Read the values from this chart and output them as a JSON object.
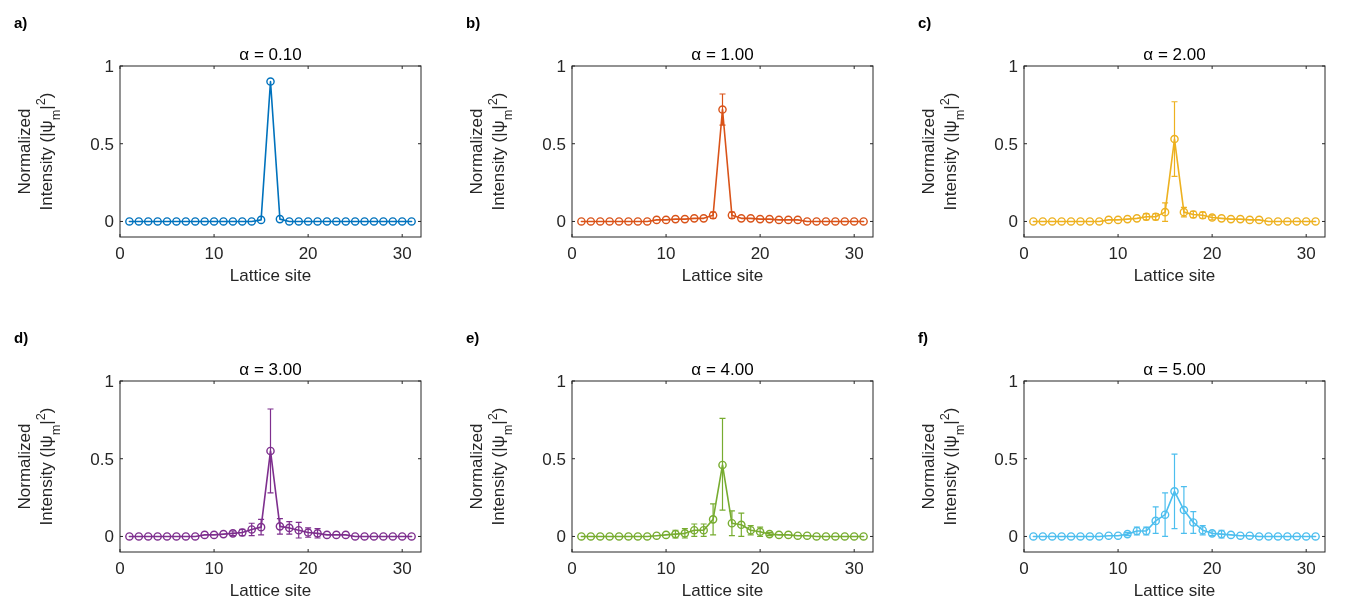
{
  "chart_data": [
    {
      "type": "line",
      "title": "α = 0.10",
      "xlabel": "Lattice site",
      "ylabel": "Normalized\nIntensity (|ψ$_{m}$|$^{2}$)",
      "annotations": [
        "a)"
      ],
      "xlim": [
        0,
        32
      ],
      "xticks": [
        0,
        10,
        20,
        30
      ],
      "ylim": [
        -0.1,
        1
      ],
      "yticks": [
        0,
        0.5,
        1
      ],
      "marker": "circle",
      "x": [
        1,
        2,
        3,
        4,
        5,
        6,
        7,
        8,
        9,
        10,
        11,
        12,
        13,
        14,
        15,
        16,
        17,
        18,
        19,
        20,
        21,
        22,
        23,
        24,
        25,
        26,
        27,
        28,
        29,
        30,
        31
      ],
      "series": [
        {
          "color": "#0072bd",
          "values": [
            0,
            0,
            0,
            0,
            0,
            0,
            0,
            0,
            0,
            0,
            0,
            0,
            0,
            0,
            0.01,
            0.9,
            0.015,
            0,
            0,
            0,
            0,
            0,
            0,
            0,
            0,
            0,
            0,
            0,
            0,
            0,
            0
          ]
        }
      ]
    },
    {
      "type": "line",
      "title": "α = 1.00",
      "xlabel": "Lattice site",
      "ylabel": "Normalized\nIntensity (|ψ$_{m}$|$^{2}$)",
      "annotations": [
        "b)"
      ],
      "xlim": [
        0,
        32
      ],
      "xticks": [
        0,
        10,
        20,
        30
      ],
      "ylim": [
        -0.1,
        1
      ],
      "yticks": [
        0,
        0.5,
        1
      ],
      "marker": "circle",
      "x": [
        1,
        2,
        3,
        4,
        5,
        6,
        7,
        8,
        9,
        10,
        11,
        12,
        13,
        14,
        15,
        16,
        17,
        18,
        19,
        20,
        21,
        22,
        23,
        24,
        25,
        26,
        27,
        28,
        29,
        30,
        31
      ],
      "series": [
        {
          "color": "#d95319",
          "values": [
            0,
            0,
            0,
            0,
            0,
            0,
            0,
            0,
            0.01,
            0.01,
            0.015,
            0.015,
            0.02,
            0.02,
            0.04,
            0.72,
            0.04,
            0.02,
            0.02,
            0.015,
            0.015,
            0.01,
            0.01,
            0.01,
            0,
            0,
            0,
            0,
            0,
            0,
            0
          ],
          "errors": [
            null,
            null,
            null,
            null,
            null,
            null,
            null,
            null,
            null,
            null,
            null,
            null,
            null,
            null,
            0.02,
            0.1,
            0.02,
            null,
            null,
            null,
            null,
            null,
            null,
            null,
            null,
            null,
            null,
            null,
            null,
            null,
            null
          ]
        }
      ]
    },
    {
      "type": "line",
      "title": "α = 2.00",
      "xlabel": "Lattice site",
      "ylabel": "Normalized\nIntensity (|ψ$_{m}$|$^{2}$)",
      "annotations": [
        "c)"
      ],
      "xlim": [
        0,
        32
      ],
      "xticks": [
        0,
        10,
        20,
        30
      ],
      "ylim": [
        -0.1,
        1
      ],
      "yticks": [
        0,
        0.5,
        1
      ],
      "marker": "circle",
      "x": [
        1,
        2,
        3,
        4,
        5,
        6,
        7,
        8,
        9,
        10,
        11,
        12,
        13,
        14,
        15,
        16,
        17,
        18,
        19,
        20,
        21,
        22,
        23,
        24,
        25,
        26,
        27,
        28,
        29,
        30,
        31
      ],
      "series": [
        {
          "color": "#edb120",
          "values": [
            0,
            0,
            0,
            0,
            0,
            0,
            0,
            0,
            0.01,
            0.01,
            0.015,
            0.02,
            0.03,
            0.03,
            0.06,
            0.53,
            0.06,
            0.045,
            0.04,
            0.025,
            0.02,
            0.015,
            0.015,
            0.01,
            0.01,
            0,
            0,
            0,
            0,
            0,
            0
          ],
          "errors": [
            null,
            null,
            null,
            null,
            null,
            null,
            null,
            null,
            null,
            null,
            null,
            null,
            0.02,
            0.02,
            0.06,
            0.24,
            0.03,
            0.02,
            0.02,
            0.015,
            null,
            null,
            null,
            null,
            null,
            null,
            null,
            null,
            null,
            null,
            null
          ]
        }
      ]
    },
    {
      "type": "line",
      "title": "α = 3.00",
      "xlabel": "Lattice site",
      "ylabel": "Normalized\nIntensity (|ψ$_{m}$|$^{2}$)",
      "annotations": [
        "d)"
      ],
      "xlim": [
        0,
        32
      ],
      "xticks": [
        0,
        10,
        20,
        30
      ],
      "ylim": [
        -0.1,
        1
      ],
      "yticks": [
        0,
        0.5,
        1
      ],
      "marker": "circle",
      "x": [
        1,
        2,
        3,
        4,
        5,
        6,
        7,
        8,
        9,
        10,
        11,
        12,
        13,
        14,
        15,
        16,
        17,
        18,
        19,
        20,
        21,
        22,
        23,
        24,
        25,
        26,
        27,
        28,
        29,
        30,
        31
      ],
      "series": [
        {
          "color": "#7e2f8e",
          "values": [
            0,
            0,
            0,
            0,
            0,
            0,
            0,
            0,
            0.01,
            0.01,
            0.015,
            0.02,
            0.025,
            0.045,
            0.06,
            0.55,
            0.065,
            0.055,
            0.04,
            0.025,
            0.02,
            0.01,
            0.01,
            0.01,
            0,
            0,
            0,
            0,
            0,
            0,
            0
          ],
          "errors": [
            null,
            null,
            null,
            null,
            null,
            null,
            null,
            null,
            null,
            null,
            null,
            0.015,
            0.02,
            0.04,
            0.05,
            0.27,
            0.05,
            0.04,
            0.05,
            0.03,
            0.03,
            null,
            null,
            null,
            null,
            null,
            null,
            null,
            null,
            null,
            null
          ]
        }
      ]
    },
    {
      "type": "line",
      "title": "α = 4.00",
      "xlabel": "Lattice site",
      "ylabel": "Normalized\nIntensity (|ψ$_{m}$|$^{2}$)",
      "annotations": [
        "e)"
      ],
      "xlim": [
        0,
        32
      ],
      "xticks": [
        0,
        10,
        20,
        30
      ],
      "ylim": [
        -0.1,
        1
      ],
      "yticks": [
        0,
        0.5,
        1
      ],
      "marker": "circle",
      "x": [
        1,
        2,
        3,
        4,
        5,
        6,
        7,
        8,
        9,
        10,
        11,
        12,
        13,
        14,
        15,
        16,
        17,
        18,
        19,
        20,
        21,
        22,
        23,
        24,
        25,
        26,
        27,
        28,
        29,
        30,
        31
      ],
      "series": [
        {
          "color": "#77ac30",
          "values": [
            0,
            0,
            0,
            0,
            0,
            0,
            0,
            0,
            0.005,
            0.01,
            0.015,
            0.02,
            0.04,
            0.04,
            0.11,
            0.46,
            0.085,
            0.075,
            0.04,
            0.03,
            0.015,
            0.01,
            0.01,
            0.005,
            0.005,
            0,
            0,
            0,
            0,
            0,
            0
          ],
          "errors": [
            null,
            null,
            null,
            null,
            null,
            null,
            null,
            null,
            null,
            null,
            0.025,
            0.03,
            0.04,
            0.04,
            0.1,
            [
              0.17,
              0.76
            ],
            0.08,
            0.075,
            0.03,
            0.03,
            0.01,
            null,
            null,
            null,
            null,
            null,
            null,
            null,
            null,
            null,
            null
          ]
        }
      ]
    },
    {
      "type": "line",
      "title": "α = 5.00",
      "xlabel": "Lattice site",
      "ylabel": "Normalized\nIntensity (|ψ$_{m}$|$^{2}$)",
      "annotations": [
        "f)"
      ],
      "xlim": [
        0,
        32
      ],
      "xticks": [
        0,
        10,
        20,
        30
      ],
      "ylim": [
        -0.1,
        1
      ],
      "yticks": [
        0,
        0.5,
        1
      ],
      "marker": "circle",
      "x": [
        1,
        2,
        3,
        4,
        5,
        6,
        7,
        8,
        9,
        10,
        11,
        12,
        13,
        14,
        15,
        16,
        17,
        18,
        19,
        20,
        21,
        22,
        23,
        24,
        25,
        26,
        27,
        28,
        29,
        30,
        31
      ],
      "series": [
        {
          "color": "#4dbeee",
          "values": [
            0,
            0,
            0,
            0,
            0,
            0,
            0,
            0,
            0.005,
            0.005,
            0.015,
            0.035,
            0.035,
            0.1,
            0.14,
            0.29,
            0.17,
            0.09,
            0.04,
            0.02,
            0.015,
            0.01,
            0.005,
            0.005,
            0,
            0,
            0,
            0,
            0,
            0,
            0
          ],
          "errors": [
            null,
            null,
            null,
            null,
            null,
            null,
            null,
            null,
            null,
            null,
            0.01,
            0.025,
            0.025,
            [
              0.02,
              0.19
            ],
            [
              0,
              0.28
            ],
            [
              0.05,
              0.53
            ],
            [
              0.02,
              0.32
            ],
            [
              0.02,
              0.16
            ],
            [
              0.01,
              0.07
            ],
            0.015,
            0.025,
            null,
            null,
            null,
            null,
            null,
            null,
            null,
            null,
            null,
            null
          ]
        }
      ]
    }
  ]
}
